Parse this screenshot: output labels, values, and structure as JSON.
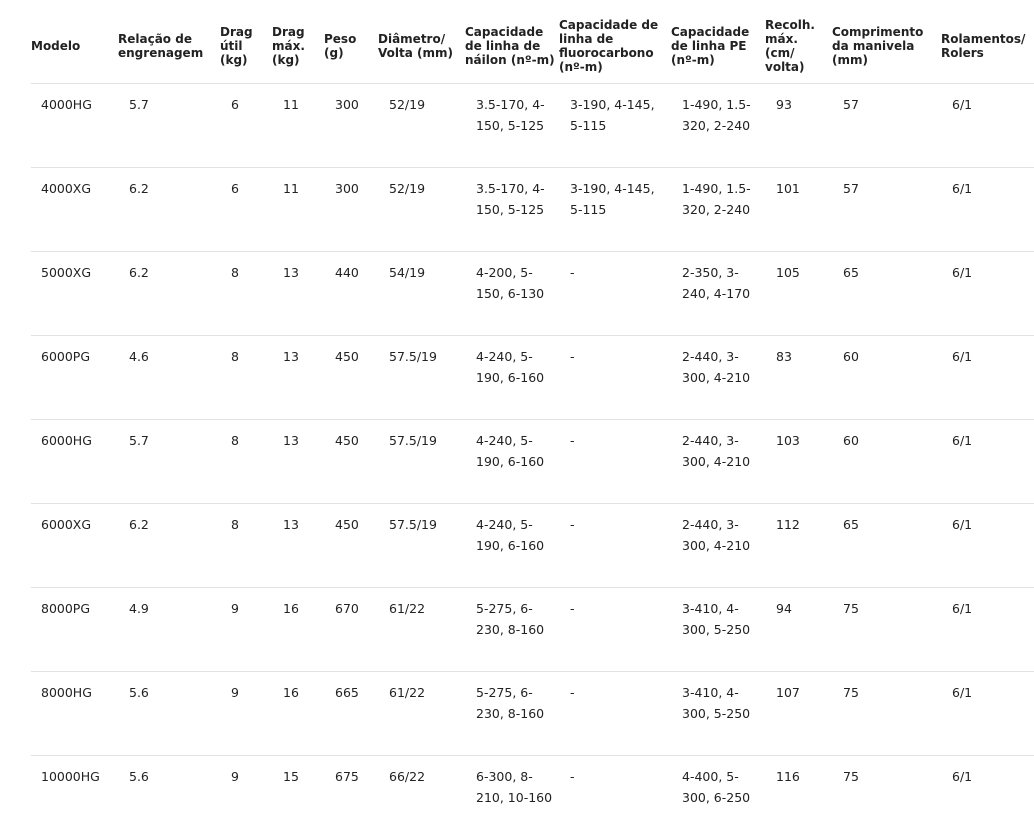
{
  "table": {
    "headers": [
      "Modelo",
      "Relação de engrenagem",
      "Drag útil (kg)",
      "Drag máx. (kg)",
      "Peso (g)",
      "Diâmetro/ Volta (mm)",
      "Capacidade de linha de náilon (nº-m)",
      "Capacidade de linha de fluorocarbono (nº-m)",
      "Capacidade de linha PE (nº-m)",
      "Recolh. máx. (cm/ volta)",
      "Comprimento da manivela (mm)",
      "Rolamentos/ Rolers"
    ],
    "rows": [
      [
        "4000HG",
        "5.7",
        "6",
        "11",
        "300",
        "52/19",
        "3.5-170, 4-150, 5-125",
        "3-190, 4-145, 5-115",
        "1-490, 1.5-320, 2-240",
        "93",
        "57",
        "6/1"
      ],
      [
        "4000XG",
        "6.2",
        "6",
        "11",
        "300",
        "52/19",
        "3.5-170, 4-150, 5-125",
        "3-190, 4-145, 5-115",
        "1-490, 1.5-320, 2-240",
        "101",
        "57",
        "6/1"
      ],
      [
        "5000XG",
        "6.2",
        "8",
        "13",
        "440",
        "54/19",
        "4-200, 5-150, 6-130",
        "-",
        "2-350, 3-240, 4-170",
        "105",
        "65",
        "6/1"
      ],
      [
        "6000PG",
        "4.6",
        "8",
        "13",
        "450",
        "57.5/19",
        "4-240, 5-190, 6-160",
        "-",
        "2-440, 3-300, 4-210",
        "83",
        "60",
        "6/1"
      ],
      [
        "6000HG",
        "5.7",
        "8",
        "13",
        "450",
        "57.5/19",
        "4-240, 5-190, 6-160",
        "-",
        "2-440, 3-300, 4-210",
        "103",
        "60",
        "6/1"
      ],
      [
        "6000XG",
        "6.2",
        "8",
        "13",
        "450",
        "57.5/19",
        "4-240, 5-190, 6-160",
        "-",
        "2-440, 3-300, 4-210",
        "112",
        "65",
        "6/1"
      ],
      [
        "8000PG",
        "4.9",
        "9",
        "16",
        "670",
        "61/22",
        "5-275, 6-230, 8-160",
        "-",
        "3-410, 4-300, 5-250",
        "94",
        "75",
        "6/1"
      ],
      [
        "8000HG",
        "5.6",
        "9",
        "16",
        "665",
        "61/22",
        "5-275, 6-230, 8-160",
        "-",
        "3-410, 4-300, 5-250",
        "107",
        "75",
        "6/1"
      ],
      [
        "10000HG",
        "5.6",
        "9",
        "15",
        "675",
        "66/22",
        "6-300, 8-210, 10-160",
        "-",
        "4-400, 5-300, 6-250",
        "116",
        "75",
        "6/1"
      ]
    ]
  }
}
